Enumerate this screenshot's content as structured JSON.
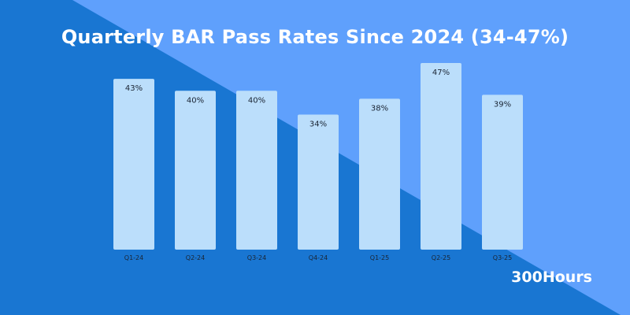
{
  "colors": {
    "background_dark": "#1976D2",
    "background_light": "#5FA0FC",
    "bar": "#BBDEFB",
    "text": "#1a2433",
    "title": "#FFFFFF"
  },
  "brand": "300Hours",
  "chart_data": {
    "type": "bar",
    "title": "Quarterly BAR Pass Rates Since 2024 (34-47%)",
    "categories": [
      "Q1-24",
      "Q2-24",
      "Q3-24",
      "Q4-24",
      "Q1-25",
      "Q2-25",
      "Q3-25"
    ],
    "values": [
      43,
      40,
      40,
      34,
      38,
      47,
      39
    ],
    "data_labels": [
      "43%",
      "40%",
      "40%",
      "34%",
      "38%",
      "47%",
      "39%"
    ],
    "xlabel": "",
    "ylabel": "",
    "ylim": [
      0,
      47
    ],
    "grid": false,
    "legend": "none"
  }
}
